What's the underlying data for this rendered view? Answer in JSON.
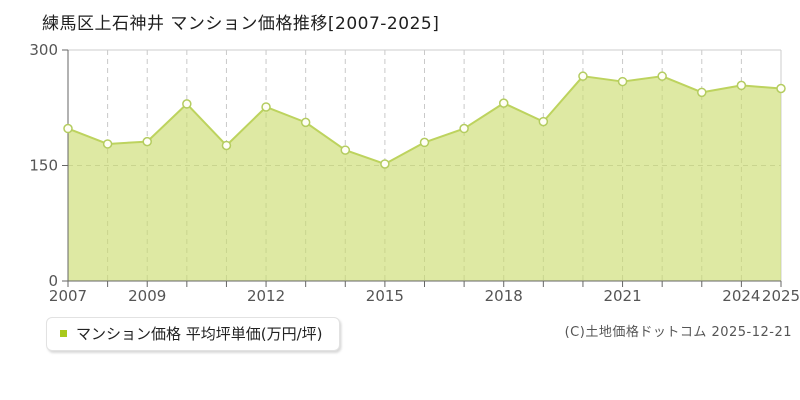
{
  "title": "練馬区上石神井 マンション価格推移[2007-2025]",
  "legend": {
    "label": "マンション価格 平均坪単価(万円/坪)",
    "marker_color": "#a9c91c"
  },
  "copyright": "(C)土地価格ドットコム 2025-12-21",
  "chart_data": {
    "type": "area",
    "title": "練馬区上石神井 マンション価格推移[2007-2025]",
    "x": [
      2007,
      2008,
      2009,
      2010,
      2011,
      2012,
      2013,
      2014,
      2015,
      2016,
      2017,
      2018,
      2019,
      2020,
      2021,
      2022,
      2023,
      2024,
      2025
    ],
    "series": [
      {
        "name": "マンション価格",
        "values": [
          198,
          178,
          181,
          230,
          176,
          226,
          206,
          170,
          152,
          180,
          198,
          231,
          207,
          266,
          259,
          266,
          245,
          254,
          250
        ]
      }
    ],
    "xlabel": "",
    "ylabel": "平均坪単価(万円/坪)",
    "ylim": [
      0,
      300
    ],
    "yticks": [
      0,
      150,
      300
    ],
    "xtick_labels": [
      2007,
      2009,
      2012,
      2015,
      2018,
      2021,
      2024,
      2025
    ],
    "grid": "dashed-vertical-every-year-and-horizontal-mid",
    "legend_position": "bottom-left",
    "colors": {
      "area_fill": "rgba(201,219,106,0.62)",
      "line": "#bdd35e",
      "marker_fill": "#fffef6",
      "marker_stroke": "#b4cc60",
      "axis": "#666666",
      "frame": "#cccccc",
      "gridline": "#c9c9c9",
      "tick_label": "#555555"
    }
  }
}
